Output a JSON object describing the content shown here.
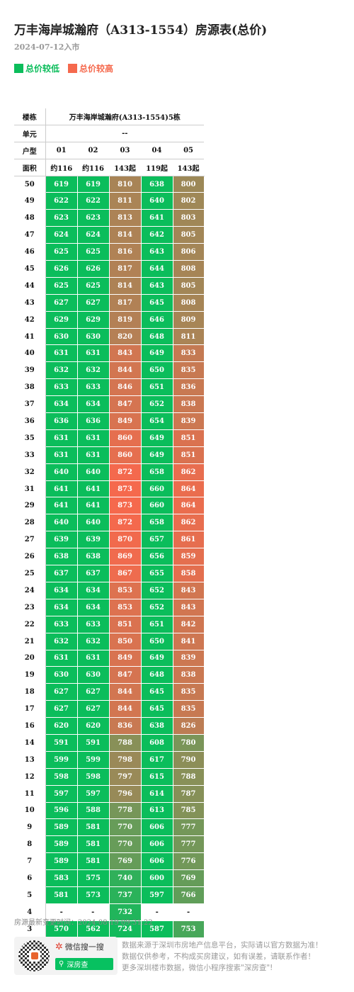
{
  "title": "万丰海岸城瀚府（A313-1554）房源表(总价)",
  "date": "2024-07-12入市",
  "legend": {
    "low_label": "总价较低",
    "high_label": "总价较高",
    "low_color": "#0bbd5b",
    "high_color": "#f5694d"
  },
  "table": {
    "row_label_building": "楼栋",
    "building_name": "万丰海岸城瀚府(A313-1554)5栋",
    "row_label_unit": "单元",
    "unit_value": "--",
    "row_label_type": "户型",
    "types": [
      "01",
      "02",
      "03",
      "04",
      "05"
    ],
    "row_label_area": "面积",
    "areas": [
      "约116",
      "约116",
      "143起",
      "119起",
      "143起"
    ],
    "floors": [
      {
        "floor": "50",
        "prices": [
          "619",
          "619",
          "810",
          "638",
          "800"
        ]
      },
      {
        "floor": "49",
        "prices": [
          "622",
          "622",
          "811",
          "640",
          "802"
        ]
      },
      {
        "floor": "48",
        "prices": [
          "623",
          "623",
          "813",
          "641",
          "803"
        ]
      },
      {
        "floor": "47",
        "prices": [
          "624",
          "624",
          "814",
          "642",
          "805"
        ]
      },
      {
        "floor": "46",
        "prices": [
          "625",
          "625",
          "816",
          "643",
          "806"
        ]
      },
      {
        "floor": "45",
        "prices": [
          "626",
          "626",
          "817",
          "644",
          "808"
        ]
      },
      {
        "floor": "44",
        "prices": [
          "625",
          "625",
          "814",
          "643",
          "805"
        ]
      },
      {
        "floor": "43",
        "prices": [
          "627",
          "627",
          "817",
          "645",
          "808"
        ]
      },
      {
        "floor": "42",
        "prices": [
          "629",
          "629",
          "819",
          "646",
          "809"
        ]
      },
      {
        "floor": "41",
        "prices": [
          "630",
          "630",
          "820",
          "648",
          "811"
        ]
      },
      {
        "floor": "40",
        "prices": [
          "631",
          "631",
          "843",
          "649",
          "833"
        ]
      },
      {
        "floor": "39",
        "prices": [
          "632",
          "632",
          "844",
          "650",
          "835"
        ]
      },
      {
        "floor": "38",
        "prices": [
          "633",
          "633",
          "846",
          "651",
          "836"
        ]
      },
      {
        "floor": "37",
        "prices": [
          "634",
          "634",
          "847",
          "652",
          "838"
        ]
      },
      {
        "floor": "36",
        "prices": [
          "636",
          "636",
          "849",
          "654",
          "839"
        ]
      },
      {
        "floor": "35",
        "prices": [
          "631",
          "631",
          "860",
          "649",
          "851"
        ]
      },
      {
        "floor": "33",
        "prices": [
          "631",
          "631",
          "860",
          "649",
          "851"
        ]
      },
      {
        "floor": "32",
        "prices": [
          "640",
          "640",
          "872",
          "658",
          "862"
        ]
      },
      {
        "floor": "31",
        "prices": [
          "641",
          "641",
          "873",
          "660",
          "864"
        ]
      },
      {
        "floor": "29",
        "prices": [
          "641",
          "641",
          "873",
          "660",
          "864"
        ]
      },
      {
        "floor": "28",
        "prices": [
          "640",
          "640",
          "872",
          "658",
          "862"
        ]
      },
      {
        "floor": "27",
        "prices": [
          "639",
          "639",
          "870",
          "657",
          "861"
        ]
      },
      {
        "floor": "26",
        "prices": [
          "638",
          "638",
          "869",
          "656",
          "859"
        ]
      },
      {
        "floor": "25",
        "prices": [
          "637",
          "637",
          "867",
          "655",
          "858"
        ]
      },
      {
        "floor": "24",
        "prices": [
          "634",
          "634",
          "853",
          "652",
          "843"
        ]
      },
      {
        "floor": "23",
        "prices": [
          "634",
          "634",
          "853",
          "652",
          "843"
        ]
      },
      {
        "floor": "22",
        "prices": [
          "633",
          "633",
          "851",
          "651",
          "842"
        ]
      },
      {
        "floor": "21",
        "prices": [
          "632",
          "632",
          "850",
          "650",
          "841"
        ]
      },
      {
        "floor": "20",
        "prices": [
          "631",
          "631",
          "849",
          "649",
          "839"
        ]
      },
      {
        "floor": "19",
        "prices": [
          "630",
          "630",
          "847",
          "648",
          "838"
        ]
      },
      {
        "floor": "18",
        "prices": [
          "627",
          "627",
          "844",
          "645",
          "835"
        ]
      },
      {
        "floor": "17",
        "prices": [
          "627",
          "627",
          "844",
          "645",
          "835"
        ]
      },
      {
        "floor": "16",
        "prices": [
          "620",
          "620",
          "836",
          "638",
          "826"
        ]
      },
      {
        "floor": "14",
        "prices": [
          "591",
          "591",
          "788",
          "608",
          "780"
        ]
      },
      {
        "floor": "13",
        "prices": [
          "599",
          "599",
          "798",
          "617",
          "790"
        ]
      },
      {
        "floor": "12",
        "prices": [
          "598",
          "598",
          "797",
          "615",
          "788"
        ]
      },
      {
        "floor": "11",
        "prices": [
          "597",
          "597",
          "796",
          "614",
          "787"
        ]
      },
      {
        "floor": "10",
        "prices": [
          "596",
          "588",
          "778",
          "613",
          "785"
        ]
      },
      {
        "floor": "9",
        "prices": [
          "589",
          "581",
          "770",
          "606",
          "777"
        ]
      },
      {
        "floor": "8",
        "prices": [
          "589",
          "581",
          "770",
          "606",
          "777"
        ]
      },
      {
        "floor": "7",
        "prices": [
          "589",
          "581",
          "769",
          "606",
          "776"
        ]
      },
      {
        "floor": "6",
        "prices": [
          "583",
          "575",
          "740",
          "600",
          "769"
        ]
      },
      {
        "floor": "5",
        "prices": [
          "581",
          "573",
          "737",
          "597",
          "766"
        ]
      },
      {
        "floor": "4",
        "prices": [
          "-",
          "-",
          "732",
          "-",
          "-"
        ]
      },
      {
        "floor": "3",
        "prices": [
          "570",
          "562",
          "724",
          "587",
          "753"
        ]
      }
    ]
  },
  "updated_text": "房源最新变更时间：2024-08-19 09:31:22",
  "footer": {
    "wechat_search_label": "微信搜一搜",
    "search_button_label": "深房查",
    "disclaimer_lines": [
      "数据来源于深圳市房地产信息平台，实际请以官方数据为准！",
      "数据仅供参考，不构成买房建议，如有误差，请联系作者！",
      "更多深圳楼市数据，微信小程序搜索\"深房查\"!"
    ]
  }
}
